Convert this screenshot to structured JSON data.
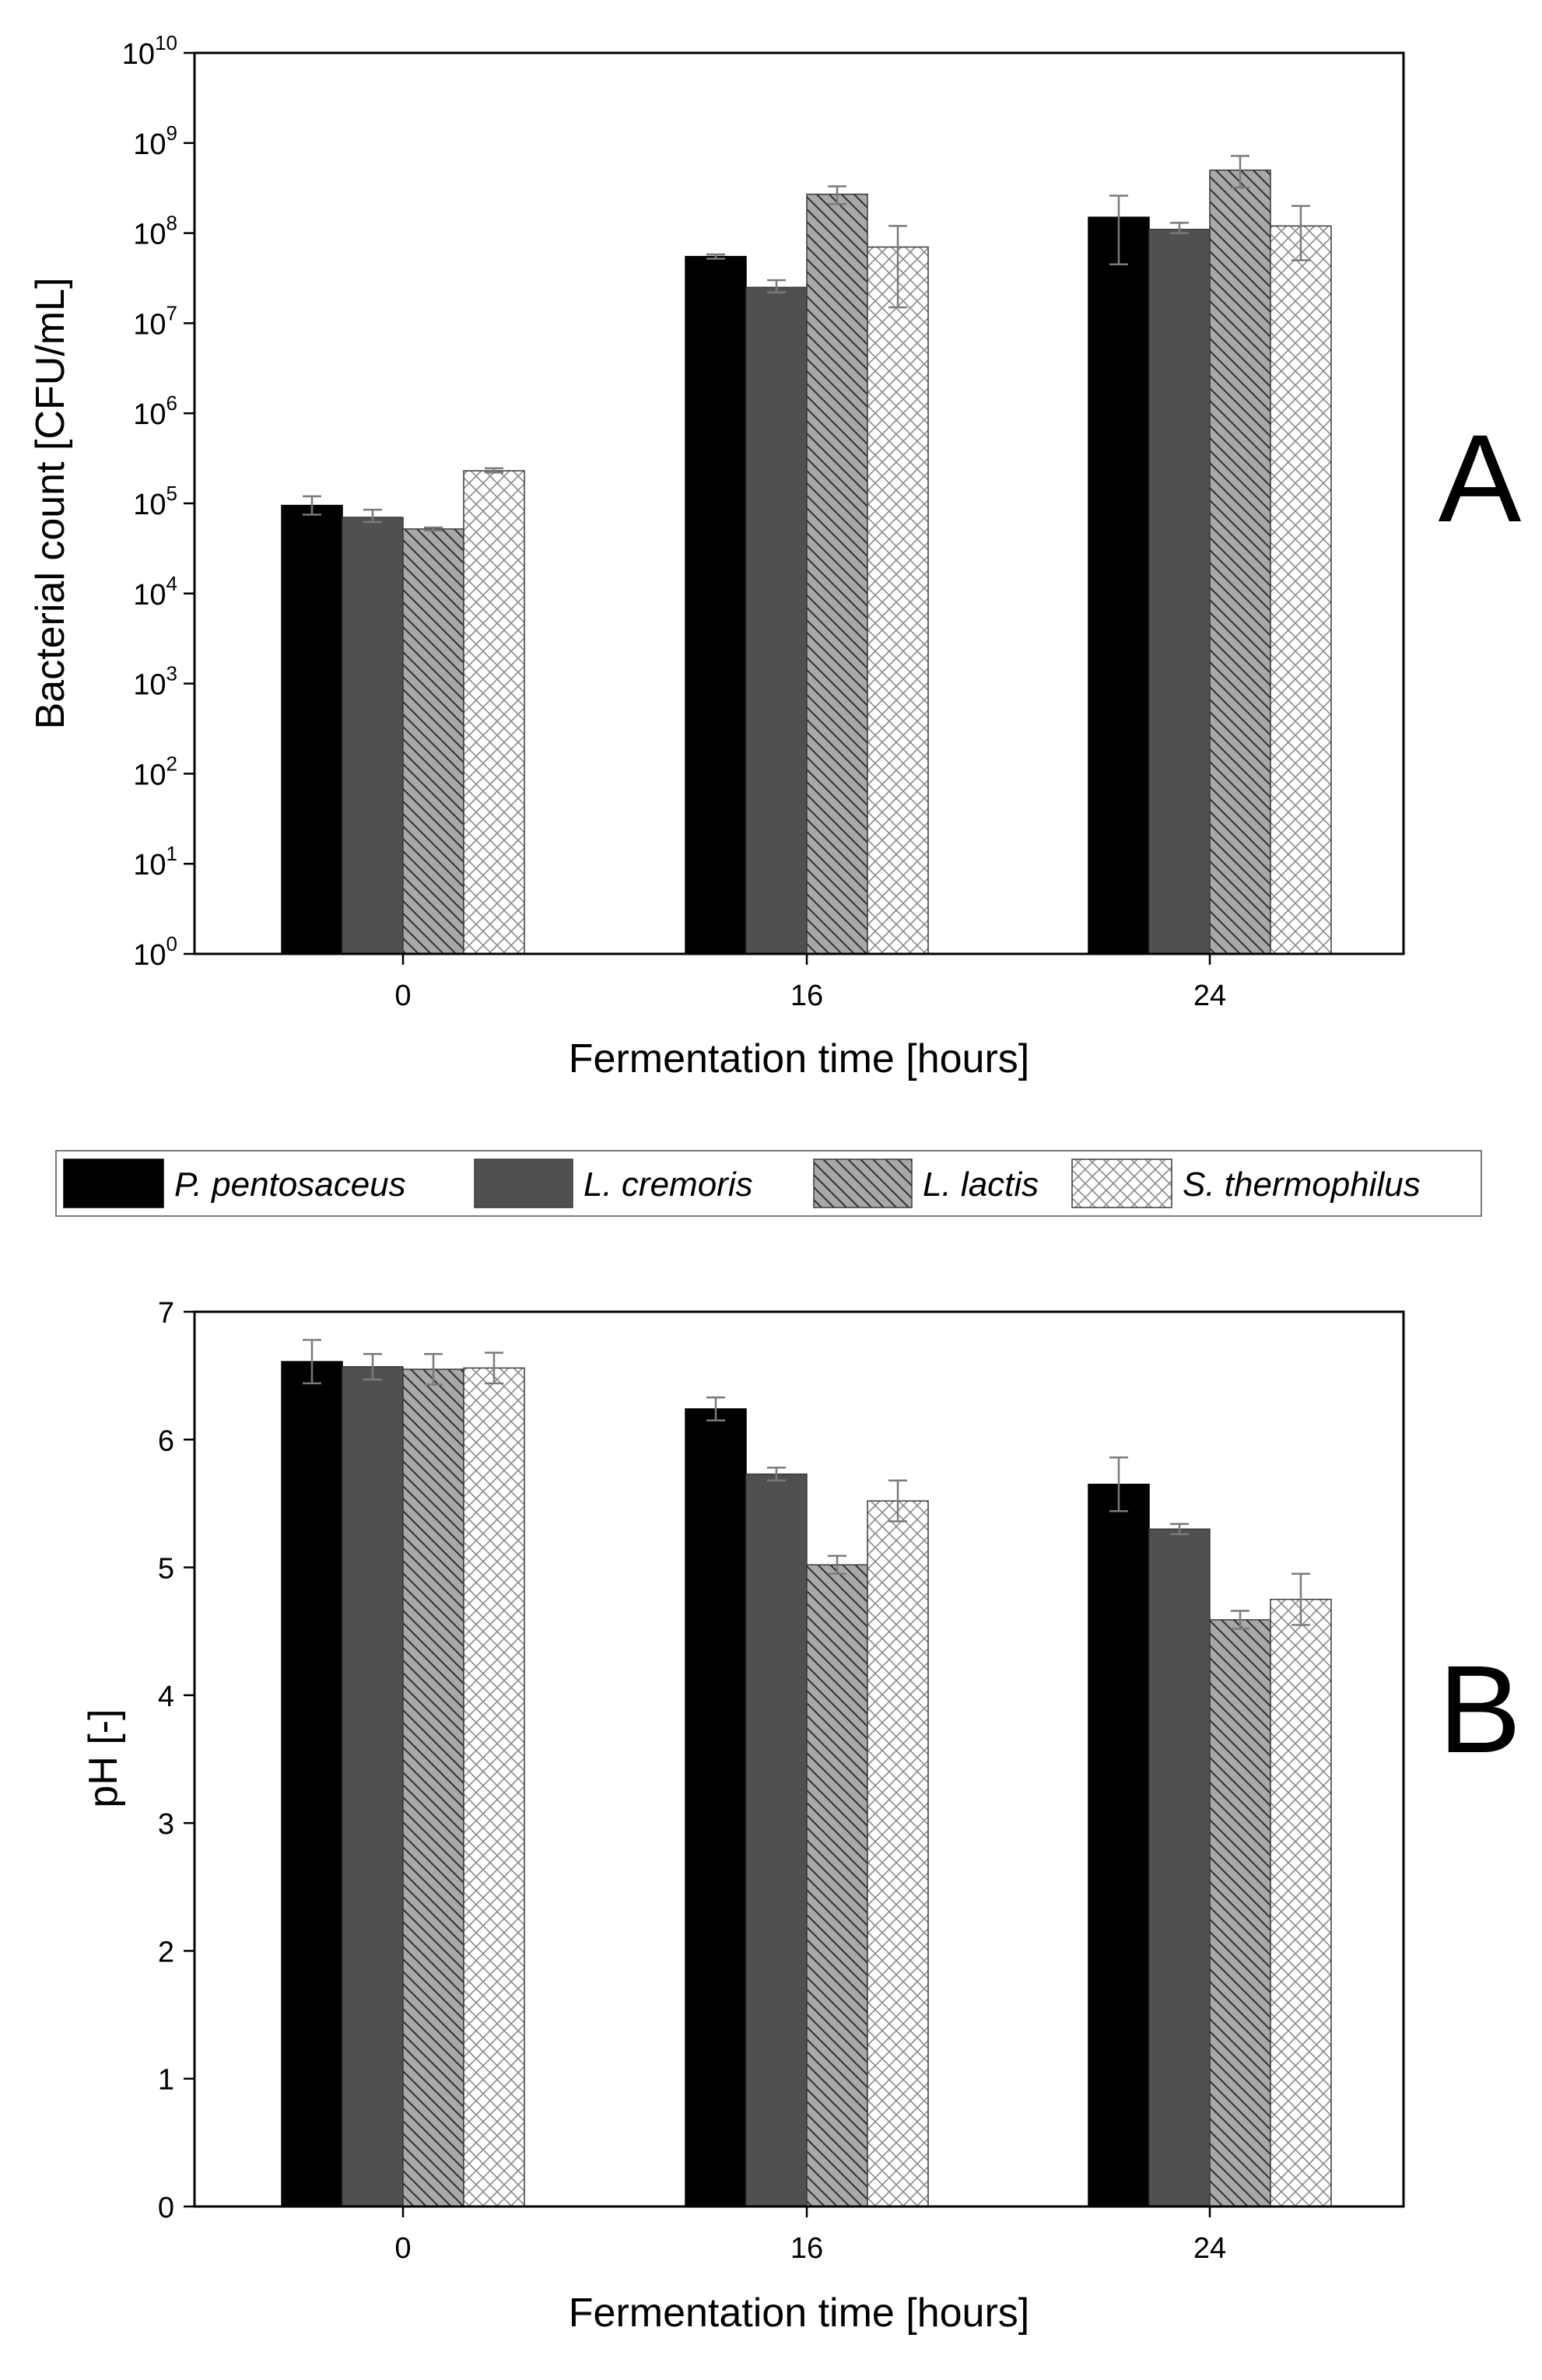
{
  "legend": [
    {
      "name": "P. pentosaceus",
      "fill": "#000000",
      "pattern": "none"
    },
    {
      "name": "L. cremoris",
      "fill": "#505050",
      "pattern": "none"
    },
    {
      "name": "L. lactis",
      "fill": "#a8a8a8",
      "pattern": "diag"
    },
    {
      "name": "S. thermophilus",
      "fill": "#ffffff",
      "pattern": "cross"
    }
  ],
  "panels": {
    "A": {
      "letter": "A"
    },
    "B": {
      "letter": "B"
    }
  },
  "colors": {
    "error_bar": "#7a7a7a",
    "axis": "#000000"
  },
  "chart_data": [
    {
      "type": "bar",
      "panel": "A",
      "scale": "log",
      "categories": [
        "0",
        "16",
        "24"
      ],
      "xlabel": "Fermentation time [hours]",
      "ylabel": "Bacterial count [CFU/mL]",
      "ylim": [
        1,
        10000000000
      ],
      "yticks": [
        {
          "base": "10",
          "exp": "0"
        },
        {
          "base": "10",
          "exp": "1"
        },
        {
          "base": "10",
          "exp": "2"
        },
        {
          "base": "10",
          "exp": "3"
        },
        {
          "base": "10",
          "exp": "4"
        },
        {
          "base": "10",
          "exp": "5"
        },
        {
          "base": "10",
          "exp": "6"
        },
        {
          "base": "10",
          "exp": "7"
        },
        {
          "base": "10",
          "exp": "8"
        },
        {
          "base": "10",
          "exp": "9"
        },
        {
          "base": "10",
          "exp": "10"
        }
      ],
      "series": [
        {
          "name": "P. pentosaceus",
          "values": [
            95000,
            55000000,
            150000000
          ],
          "err_low": [
            75000,
            52000000,
            45000000
          ],
          "err_high": [
            120000,
            58000000,
            260000000
          ]
        },
        {
          "name": "L. cremoris",
          "values": [
            70000,
            25000000,
            110000000
          ],
          "err_low": [
            62000,
            22000000,
            100000000
          ],
          "err_high": [
            85000,
            30000000,
            130000000
          ]
        },
        {
          "name": "L. lactis",
          "values": [
            52000,
            270000000,
            500000000
          ],
          "err_low": [
            50000,
            210000000,
            320000000
          ],
          "err_high": [
            54000,
            330000000,
            720000000
          ]
        },
        {
          "name": "S. thermophilus",
          "values": [
            230000,
            70000000,
            120000000
          ],
          "err_low": [
            220000,
            15000000,
            50000000
          ],
          "err_high": [
            245000,
            120000000,
            200000000
          ]
        }
      ]
    },
    {
      "type": "bar",
      "panel": "B",
      "scale": "linear",
      "categories": [
        "0",
        "16",
        "24"
      ],
      "xlabel": "Fermentation time [hours]",
      "ylabel": "pH [-]",
      "ylim": [
        0,
        7
      ],
      "yticks": [
        "0",
        "1",
        "2",
        "3",
        "4",
        "5",
        "6",
        "7"
      ],
      "series": [
        {
          "name": "P. pentosaceus",
          "values": [
            6.61,
            6.24,
            5.65
          ],
          "err": [
            0.17,
            0.09,
            0.21
          ]
        },
        {
          "name": "L. cremoris",
          "values": [
            6.57,
            5.73,
            5.3
          ],
          "err": [
            0.1,
            0.05,
            0.04
          ]
        },
        {
          "name": "L. lactis",
          "values": [
            6.55,
            5.02,
            4.59
          ],
          "err": [
            0.12,
            0.07,
            0.07
          ]
        },
        {
          "name": "S. thermophilus",
          "values": [
            6.56,
            5.52,
            4.75
          ],
          "err": [
            0.12,
            0.16,
            0.2
          ]
        }
      ]
    }
  ]
}
